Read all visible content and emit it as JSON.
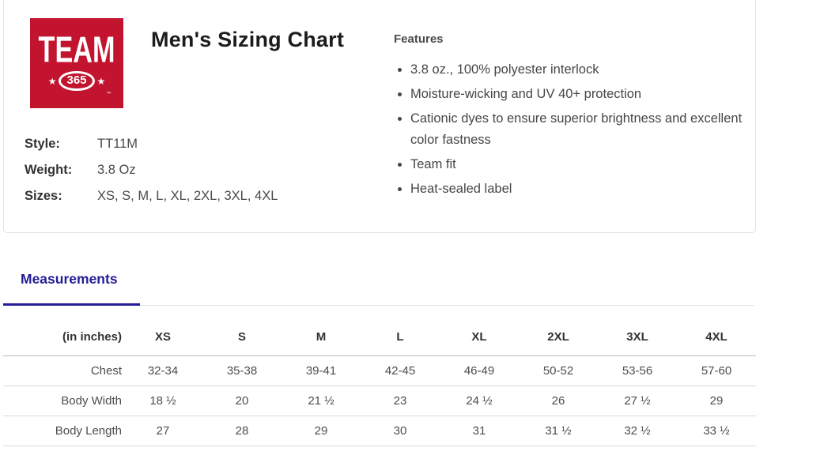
{
  "brand": {
    "logo_word": "TEAM",
    "logo_number": "365",
    "logo_star": "★",
    "logo_tm": "™",
    "logo_bg_color": "#c3142f"
  },
  "page": {
    "title": "Men's Sizing Chart"
  },
  "specs": {
    "style_label": "Style:",
    "style_value": "TT11M",
    "weight_label": "Weight:",
    "weight_value": "3.8 Oz",
    "sizes_label": "Sizes:",
    "sizes_value": "XS, S, M, L, XL, 2XL, 3XL, 4XL"
  },
  "features": {
    "heading": "Features",
    "items": [
      "3.8 oz., 100% polyester interlock",
      "Moisture-wicking and UV 40+ protection",
      "Cationic dyes to ensure superior brightness and excellent color fastness",
      "Team fit",
      "Heat-sealed label"
    ]
  },
  "tabs": {
    "measurements_label": "Measurements",
    "active_color": "#241c96"
  },
  "chart_data": {
    "type": "table",
    "title": "Measurements",
    "unit_header": "(in inches)",
    "size_headers": [
      "XS",
      "S",
      "M",
      "L",
      "XL",
      "2XL",
      "3XL",
      "4XL"
    ],
    "rows": [
      {
        "label": "Chest",
        "values": [
          "32-34",
          "35-38",
          "39-41",
          "42-45",
          "46-49",
          "50-52",
          "53-56",
          "57-60"
        ]
      },
      {
        "label": "Body Width",
        "values": [
          "18 ½",
          "20",
          "21 ½",
          "23",
          "24 ½",
          "26",
          "27 ½",
          "29"
        ]
      },
      {
        "label": "Body Length",
        "values": [
          "27",
          "28",
          "29",
          "30",
          "31",
          "31 ½",
          "32 ½",
          "33 ½"
        ]
      }
    ]
  }
}
